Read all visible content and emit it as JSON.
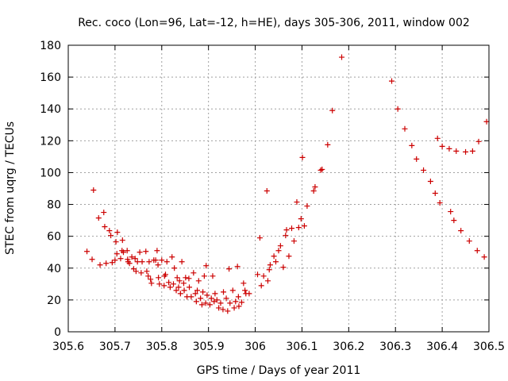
{
  "chart_data": {
    "type": "scatter",
    "title": "Rec. coco (Lon=96, Lat=-12, h=HE), days 305-306, 2011, window 002",
    "xlabel": "GPS time / Days of year 2011",
    "ylabel": "STEC from uqrg / TECUs",
    "xlim": [
      305.6,
      306.5
    ],
    "ylim": [
      0,
      180
    ],
    "grid": true,
    "marker": "+",
    "color": "#cc0000",
    "x_ticks": [
      "305.6",
      "305.7",
      "305.8",
      "305.9",
      "306",
      "306.1",
      "306.2",
      "306.3",
      "306.4",
      "306.5"
    ],
    "y_ticks": [
      "0",
      "20",
      "40",
      "60",
      "80",
      "100",
      "120",
      "140",
      "160",
      "180"
    ],
    "series": [
      {
        "name": "STEC",
        "points": [
          [
            305.64,
            50.5
          ],
          [
            305.651,
            45.5
          ],
          [
            305.654,
            89
          ],
          [
            305.665,
            71.5
          ],
          [
            305.668,
            42
          ],
          [
            305.676,
            75
          ],
          [
            305.678,
            66
          ],
          [
            305.681,
            43
          ],
          [
            305.688,
            63.5
          ],
          [
            305.691,
            60.5
          ],
          [
            305.694,
            43.5
          ],
          [
            305.7,
            45
          ],
          [
            305.702,
            56.5
          ],
          [
            305.704,
            49
          ],
          [
            305.705,
            62.5
          ],
          [
            305.712,
            46
          ],
          [
            305.715,
            51
          ],
          [
            305.716,
            57.5
          ],
          [
            305.718,
            50
          ],
          [
            305.726,
            51
          ],
          [
            305.727,
            45.5
          ],
          [
            305.728,
            44
          ],
          [
            305.731,
            43
          ],
          [
            305.736,
            47
          ],
          [
            305.74,
            39.5
          ],
          [
            305.743,
            46
          ],
          [
            305.745,
            38
          ],
          [
            305.748,
            44
          ],
          [
            305.753,
            50
          ],
          [
            305.756,
            37
          ],
          [
            305.758,
            44
          ],
          [
            305.766,
            50.5
          ],
          [
            305.768,
            38
          ],
          [
            305.771,
            35
          ],
          [
            305.773,
            44
          ],
          [
            305.776,
            33
          ],
          [
            305.778,
            30.5
          ],
          [
            305.783,
            45
          ],
          [
            305.787,
            45
          ],
          [
            305.79,
            51
          ],
          [
            305.792,
            42
          ],
          [
            305.793,
            34
          ],
          [
            305.795,
            30
          ],
          [
            305.8,
            45
          ],
          [
            305.805,
            29
          ],
          [
            305.806,
            35
          ],
          [
            305.808,
            36
          ],
          [
            305.811,
            44
          ],
          [
            305.815,
            31
          ],
          [
            305.818,
            28
          ],
          [
            305.822,
            47
          ],
          [
            305.825,
            30
          ],
          [
            305.827,
            40
          ],
          [
            305.831,
            26
          ],
          [
            305.833,
            34
          ],
          [
            305.836,
            28
          ],
          [
            305.838,
            32
          ],
          [
            305.84,
            24
          ],
          [
            305.843,
            44
          ],
          [
            305.847,
            30.5
          ],
          [
            305.848,
            26
          ],
          [
            305.851,
            34
          ],
          [
            305.854,
            22
          ],
          [
            305.858,
            33.5
          ],
          [
            305.859,
            28
          ],
          [
            305.863,
            22
          ],
          [
            305.868,
            37
          ],
          [
            305.872,
            24
          ],
          [
            305.874,
            19
          ],
          [
            305.876,
            26
          ],
          [
            305.879,
            32
          ],
          [
            305.883,
            21
          ],
          [
            305.886,
            17
          ],
          [
            305.888,
            25
          ],
          [
            305.891,
            35
          ],
          [
            305.894,
            18
          ],
          [
            305.895,
            41.5
          ],
          [
            305.897,
            23
          ],
          [
            305.903,
            17
          ],
          [
            305.906,
            21
          ],
          [
            305.909,
            35
          ],
          [
            305.912,
            19
          ],
          [
            305.914,
            24
          ],
          [
            305.918,
            20
          ],
          [
            305.922,
            15
          ],
          [
            305.926,
            18
          ],
          [
            305.931,
            14
          ],
          [
            305.932,
            25
          ],
          [
            305.938,
            21
          ],
          [
            305.941,
            13
          ],
          [
            305.944,
            39.5
          ],
          [
            305.946,
            18
          ],
          [
            305.952,
            26
          ],
          [
            305.955,
            15
          ],
          [
            305.958,
            19
          ],
          [
            305.962,
            41
          ],
          [
            305.964,
            22
          ],
          [
            305.965,
            16
          ],
          [
            305.971,
            18.5
          ],
          [
            305.975,
            30.5
          ],
          [
            305.978,
            26
          ],
          [
            305.98,
            24
          ],
          [
            305.987,
            24
          ],
          [
            306.005,
            36
          ],
          [
            306.01,
            59
          ],
          [
            306.013,
            29
          ],
          [
            306.018,
            35
          ],
          [
            306.025,
            88.5
          ],
          [
            306.027,
            32
          ],
          [
            306.03,
            39
          ],
          [
            306.032,
            42
          ],
          [
            306.04,
            47.5
          ],
          [
            306.044,
            44
          ],
          [
            306.05,
            51
          ],
          [
            306.054,
            54
          ],
          [
            306.06,
            40.5
          ],
          [
            306.065,
            60.5
          ],
          [
            306.067,
            64
          ],
          [
            306.072,
            47.5
          ],
          [
            306.078,
            65
          ],
          [
            306.083,
            57
          ],
          [
            306.089,
            81.5
          ],
          [
            306.093,
            65.5
          ],
          [
            306.098,
            71
          ],
          [
            306.101,
            109.5
          ],
          [
            306.105,
            66.5
          ],
          [
            306.111,
            79
          ],
          [
            306.125,
            88.5
          ],
          [
            306.128,
            91
          ],
          [
            306.14,
            101.5
          ],
          [
            306.143,
            102
          ],
          [
            306.155,
            117.5
          ],
          [
            306.165,
            139
          ],
          [
            306.185,
            172.5
          ],
          [
            306.292,
            157.5
          ],
          [
            306.305,
            140
          ],
          [
            306.32,
            127.5
          ],
          [
            306.335,
            117
          ],
          [
            306.345,
            108.5
          ],
          [
            306.36,
            101.5
          ],
          [
            306.375,
            94.5
          ],
          [
            306.385,
            87
          ],
          [
            306.39,
            121.5
          ],
          [
            306.395,
            81
          ],
          [
            306.4,
            116.5
          ],
          [
            306.415,
            115
          ],
          [
            306.418,
            75.5
          ],
          [
            306.425,
            70
          ],
          [
            306.43,
            113.5
          ],
          [
            306.44,
            63.5
          ],
          [
            306.45,
            113
          ],
          [
            306.458,
            57
          ],
          [
            306.465,
            113.5
          ],
          [
            306.475,
            51
          ],
          [
            306.478,
            119.5
          ],
          [
            306.49,
            47
          ],
          [
            306.495,
            132
          ]
        ]
      }
    ]
  }
}
